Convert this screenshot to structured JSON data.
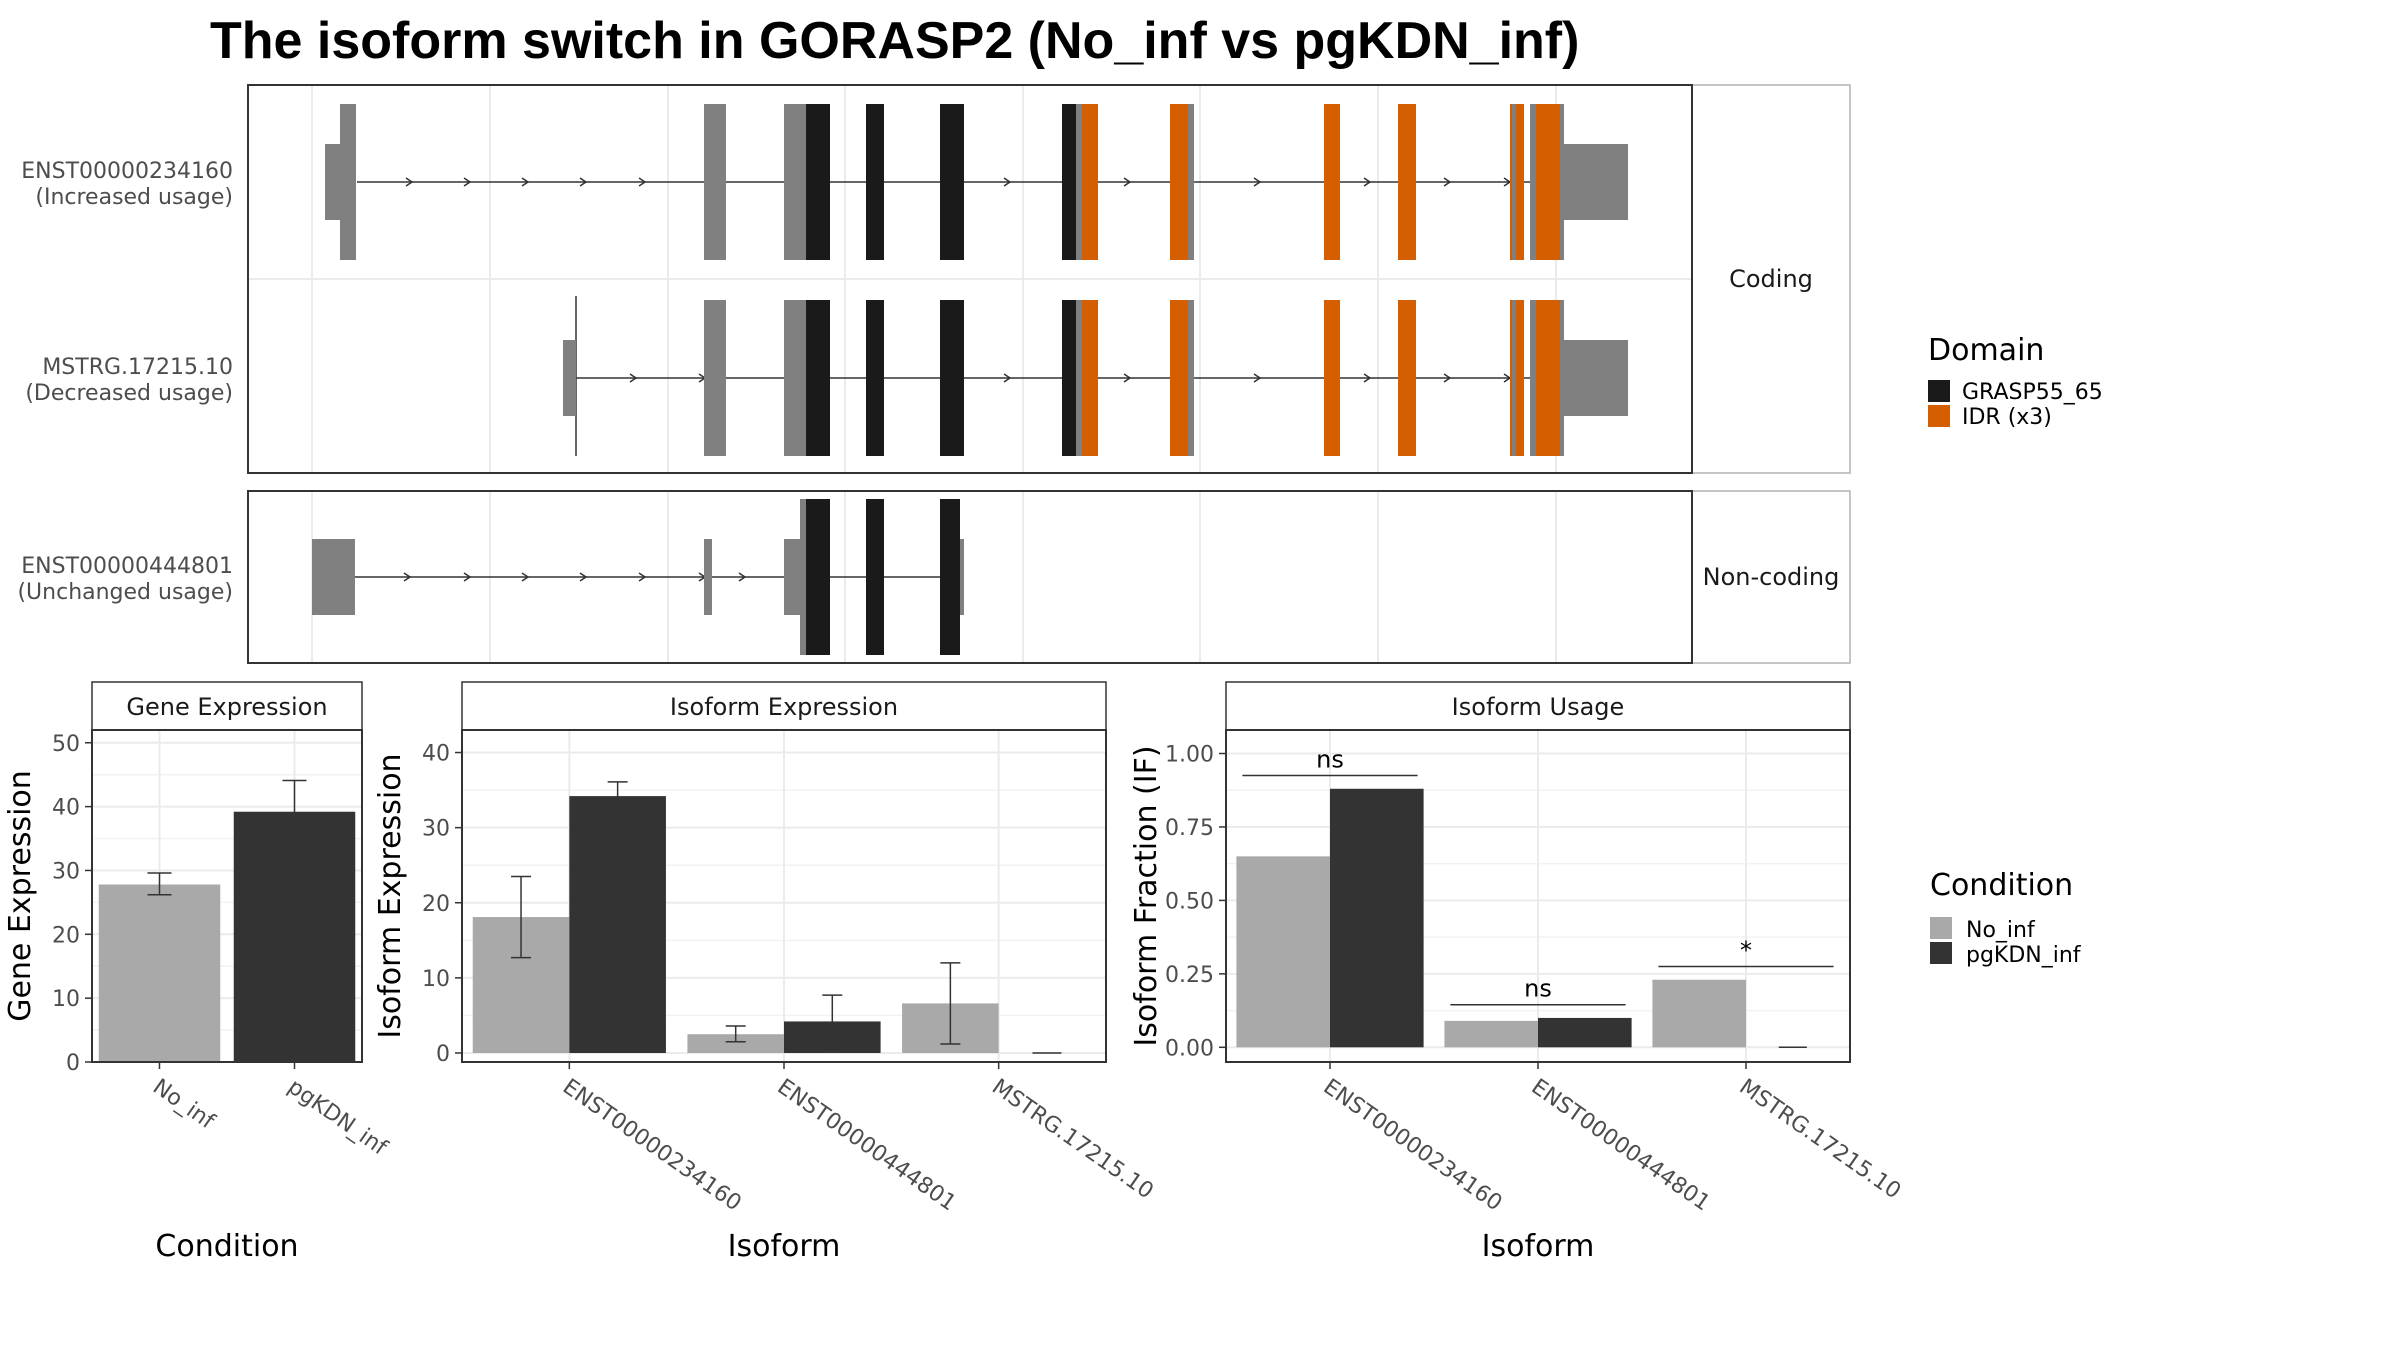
{
  "title": "The isoform switch in GORASP2 (No_inf vs pgKDN_inf)",
  "colors": {
    "utr": "#808080",
    "grasp": "#1a1a1a",
    "idr": "#d55e00",
    "no_inf": "#a9a9a9",
    "pgkdn_inf": "#333333",
    "grid": "#ebebeb",
    "panel_border": "#333333"
  },
  "transcripts": {
    "panels": [
      "Coding",
      "Non-coding"
    ],
    "tracks": [
      {
        "id": "ENST00000234160",
        "usage": "(Increased usage)",
        "panel": "Coding"
      },
      {
        "id": "MSTRG.17215.10",
        "usage": "(Decreased usage)",
        "panel": "Coding"
      },
      {
        "id": "ENST00000444801",
        "usage": "(Unchanged usage)",
        "panel": "Non-coding"
      }
    ]
  },
  "domain_legend": {
    "title": "Domain",
    "items": [
      {
        "label": "GRASP55_65",
        "color": "#1a1a1a"
      },
      {
        "label": "IDR (x3)",
        "color": "#d55e00"
      }
    ]
  },
  "condition_legend": {
    "title": "Condition",
    "items": [
      {
        "label": "No_inf",
        "color": "#a9a9a9"
      },
      {
        "label": "pgKDN_inf",
        "color": "#333333"
      }
    ]
  },
  "chart_data": [
    {
      "type": "bar",
      "strip": "Gene Expression",
      "xlabel": "Condition",
      "ylabel": "Gene Expression",
      "ylim": [
        0,
        52
      ],
      "yticks": [
        0,
        10,
        20,
        30,
        40,
        50
      ],
      "categories": [
        "No_inf",
        "pgKDN_inf"
      ],
      "values": [
        27.8,
        39.2
      ],
      "err_low": [
        26.2,
        34.3
      ],
      "err_high": [
        29.6,
        44.1
      ]
    },
    {
      "type": "bar",
      "strip": "Isoform Expression",
      "xlabel": "Isoform",
      "ylabel": "Isoform Expression",
      "ylim": [
        -1.2,
        43
      ],
      "yticks": [
        0,
        10,
        20,
        30,
        40
      ],
      "categories": [
        "ENST00000234160",
        "ENST00000444801",
        "MSTRG.17215.10"
      ],
      "series": [
        {
          "name": "No_inf",
          "values": [
            18.1,
            2.5,
            6.6
          ],
          "err_low": [
            12.7,
            1.5,
            1.2
          ],
          "err_high": [
            23.5,
            3.6,
            12.0
          ]
        },
        {
          "name": "pgKDN_inf",
          "values": [
            34.2,
            4.2,
            0.0
          ],
          "err_low": [
            32.3,
            0.6,
            null
          ],
          "err_high": [
            36.1,
            7.7,
            null
          ]
        }
      ]
    },
    {
      "type": "bar",
      "strip": "Isoform Usage",
      "xlabel": "Isoform",
      "ylabel": "Isoform Fraction (IF)",
      "ylim": [
        -0.05,
        1.08
      ],
      "yticks": [
        "0.00",
        "0.25",
        "0.50",
        "0.75",
        "1.00"
      ],
      "categories": [
        "ENST00000234160",
        "ENST00000444801",
        "MSTRG.17215.10"
      ],
      "series": [
        {
          "name": "No_inf",
          "values": [
            0.65,
            0.09,
            0.23
          ]
        },
        {
          "name": "pgKDN_inf",
          "values": [
            0.88,
            0.1,
            0.0
          ]
        }
      ],
      "significance": [
        "ns",
        "ns",
        "*"
      ]
    }
  ]
}
